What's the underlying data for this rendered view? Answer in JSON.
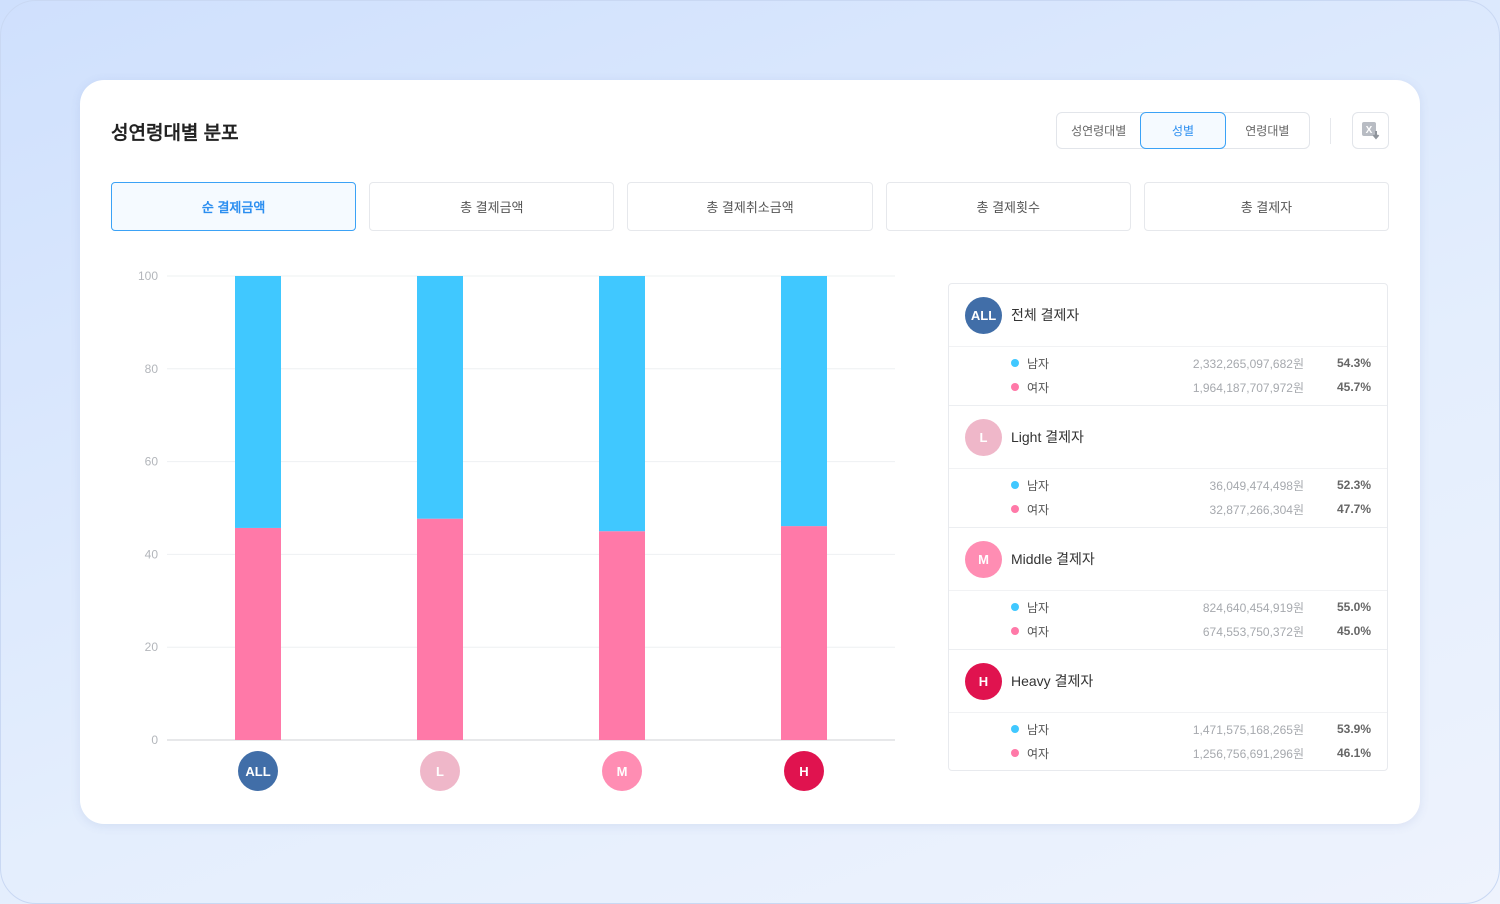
{
  "title": "성연령대별 분포",
  "segment": [
    "성연령대별",
    "성별",
    "연령대별"
  ],
  "segment_selected": 1,
  "tabs": [
    "순 결제금액",
    "총 결제금액",
    "총 결제취소금액",
    "총 결제횟수",
    "총 결제자"
  ],
  "tab_selected": 0,
  "colors": {
    "male": "#40c8ff",
    "female": "#ff79a8",
    "ALL": "#416ea8",
    "L": "#efb7c9",
    "M": "#ff8db3",
    "H": "#e0134f"
  },
  "chart_data": {
    "type": "bar",
    "stacked": true,
    "categories": [
      "ALL",
      "L",
      "M",
      "H"
    ],
    "series": [
      {
        "name": "여자",
        "values": [
          45.7,
          47.7,
          45.0,
          46.1
        ]
      },
      {
        "name": "남자",
        "values": [
          54.3,
          52.3,
          55.0,
          53.9
        ]
      }
    ],
    "yticks": [
      "0",
      "20",
      "40",
      "60",
      "80",
      "100"
    ],
    "ylim": [
      0,
      100
    ],
    "grid": true
  },
  "legend": [
    {
      "badge": "ALL",
      "name": "전체 결제자",
      "rows": [
        {
          "label": "남자",
          "amount": "2,332,265,097,682원",
          "pct": "54.3%"
        },
        {
          "label": "여자",
          "amount": "1,964,187,707,972원",
          "pct": "45.7%"
        }
      ]
    },
    {
      "badge": "L",
      "name": "Light 결제자",
      "rows": [
        {
          "label": "남자",
          "amount": "36,049,474,498원",
          "pct": "52.3%"
        },
        {
          "label": "여자",
          "amount": "32,877,266,304원",
          "pct": "47.7%"
        }
      ]
    },
    {
      "badge": "M",
      "name": "Middle 결제자",
      "rows": [
        {
          "label": "남자",
          "amount": "824,640,454,919원",
          "pct": "55.0%"
        },
        {
          "label": "여자",
          "amount": "674,553,750,372원",
          "pct": "45.0%"
        }
      ]
    },
    {
      "badge": "H",
      "name": "Heavy 결제자",
      "rows": [
        {
          "label": "남자",
          "amount": "1,471,575,168,265원",
          "pct": "53.9%"
        },
        {
          "label": "여자",
          "amount": "1,256,756,691,296원",
          "pct": "46.1%"
        }
      ]
    }
  ]
}
